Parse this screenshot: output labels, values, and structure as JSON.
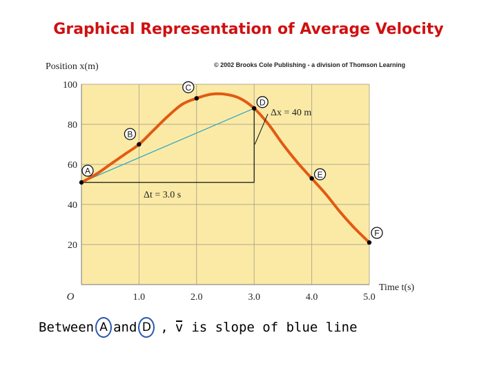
{
  "title": "Graphical Representation of Average Velocity",
  "copyright": "© 2002 Brooks Cole Publishing - a division of Thomson Learning",
  "caption": {
    "prefix": "Between",
    "point_a": "A",
    "and_word": "and",
    "point_d": "D",
    "comma": ",",
    "vbar": "v",
    "suffix": "is slope of blue line"
  },
  "chart_data": {
    "type": "line",
    "xlabel": "Time t(s)",
    "ylabel": "Position x(m)",
    "xlim": [
      0,
      5
    ],
    "ylim": [
      0,
      100
    ],
    "origin_label": "O",
    "x_ticks": [
      "1.0",
      "2.0",
      "3.0",
      "4.0",
      "5.0"
    ],
    "y_ticks": [
      "20",
      "40",
      "60",
      "80",
      "100"
    ],
    "grid": true,
    "curve": {
      "x": [
        0,
        0.25,
        0.5,
        0.75,
        1.0,
        1.25,
        1.5,
        1.75,
        2.0,
        2.25,
        2.5,
        2.75,
        3.0,
        3.25,
        3.5,
        3.75,
        4.0,
        4.25,
        4.5,
        4.75,
        5.0
      ],
      "y": [
        51,
        55,
        60,
        65,
        70,
        77,
        84,
        90,
        93,
        95,
        95,
        93,
        88,
        80,
        70,
        61,
        53,
        45,
        36,
        28,
        21
      ]
    },
    "points": [
      {
        "label": "A",
        "x": 0.0,
        "y": 51
      },
      {
        "label": "B",
        "x": 1.0,
        "y": 70
      },
      {
        "label": "C",
        "x": 2.0,
        "y": 93
      },
      {
        "label": "D",
        "x": 3.0,
        "y": 88
      },
      {
        "label": "E",
        "x": 4.0,
        "y": 53
      },
      {
        "label": "F",
        "x": 5.0,
        "y": 21
      }
    ],
    "secant": {
      "from": "A",
      "to": "D"
    },
    "annotations": {
      "dt": "Δt = 3.0 s",
      "dx": "Δx = 40 m"
    },
    "colors": {
      "plot_bg": "#fbeaa6",
      "curve": "#e25a12",
      "secant": "#2fa6c4",
      "grid": "#b3aa8c",
      "points": "#000000"
    }
  }
}
